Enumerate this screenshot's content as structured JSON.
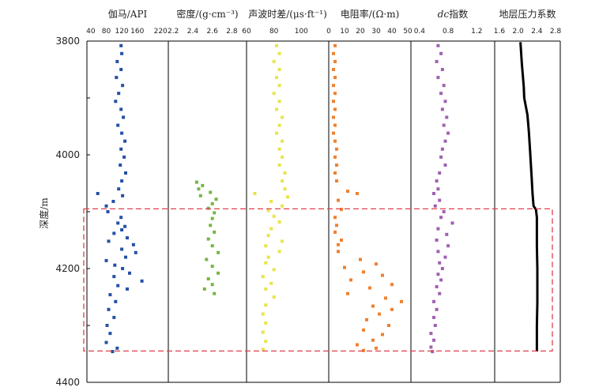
{
  "chart_data": {
    "type": "scatter",
    "title": "",
    "ylabel": "深度/m",
    "ylim": [
      3800,
      4400
    ],
    "yticks": [
      3800,
      4000,
      4200,
      4400
    ],
    "tracks": [
      {
        "name": "伽马/API",
        "xlim": [
          30,
          240
        ],
        "ticks": [
          40,
          80,
          120,
          160,
          220
        ],
        "tick_labels": [
          "40",
          "80",
          "120",
          "160",
          "220"
        ],
        "color": "#2450a4",
        "style": "points",
        "points": [
          [
            3808,
            118
          ],
          [
            3822,
            120
          ],
          [
            3836,
            108
          ],
          [
            3850,
            118
          ],
          [
            3864,
            106
          ],
          [
            3878,
            122
          ],
          [
            3892,
            112
          ],
          [
            3906,
            104
          ],
          [
            3920,
            118
          ],
          [
            3934,
            124
          ],
          [
            3948,
            110
          ],
          [
            3962,
            120
          ],
          [
            3976,
            128
          ],
          [
            3990,
            118
          ],
          [
            4004,
            126
          ],
          [
            4018,
            116
          ],
          [
            4032,
            130
          ],
          [
            4046,
            120
          ],
          [
            4060,
            112
          ],
          [
            4068,
            58
          ],
          [
            4072,
            122
          ],
          [
            4082,
            98
          ],
          [
            4090,
            80
          ],
          [
            4100,
            84
          ],
          [
            4110,
            118
          ],
          [
            4120,
            110
          ],
          [
            4126,
            128
          ],
          [
            4132,
            120
          ],
          [
            4138,
            100
          ],
          [
            4146,
            134
          ],
          [
            4152,
            86
          ],
          [
            4158,
            150
          ],
          [
            4166,
            120
          ],
          [
            4172,
            156
          ],
          [
            4180,
            130
          ],
          [
            4186,
            80
          ],
          [
            4194,
            102
          ],
          [
            4200,
            122
          ],
          [
            4208,
            140
          ],
          [
            4214,
            100
          ],
          [
            4222,
            172
          ],
          [
            4230,
            110
          ],
          [
            4236,
            134
          ],
          [
            4246,
            90
          ],
          [
            4258,
            104
          ],
          [
            4272,
            86
          ],
          [
            4286,
            100
          ],
          [
            4300,
            82
          ],
          [
            4314,
            90
          ],
          [
            4330,
            80
          ],
          [
            4340,
            108
          ],
          [
            4346,
            96
          ]
        ]
      },
      {
        "name": "密度/(g·cm⁻³)",
        "xlim": [
          2.15,
          2.95
        ],
        "ticks": [
          2.2,
          2.4,
          2.6,
          2.8
        ],
        "tick_labels": [
          "2.2",
          "2.4",
          "2.6",
          "2.8"
        ],
        "color": "#74b744",
        "style": "points",
        "points": [
          [
            4048,
            2.44
          ],
          [
            4054,
            2.5
          ],
          [
            4060,
            2.46
          ],
          [
            4066,
            2.58
          ],
          [
            4072,
            2.48
          ],
          [
            4078,
            2.64
          ],
          [
            4086,
            2.6
          ],
          [
            4094,
            2.56
          ],
          [
            4102,
            2.62
          ],
          [
            4112,
            2.6
          ],
          [
            4124,
            2.58
          ],
          [
            4136,
            2.62
          ],
          [
            4148,
            2.56
          ],
          [
            4160,
            2.6
          ],
          [
            4172,
            2.66
          ],
          [
            4184,
            2.54
          ],
          [
            4196,
            2.6
          ],
          [
            4208,
            2.66
          ],
          [
            4218,
            2.56
          ],
          [
            4228,
            2.6
          ],
          [
            4236,
            2.52
          ],
          [
            4244,
            2.62
          ]
        ]
      },
      {
        "name": "声波时差/(μs·ft⁻¹)",
        "xlim": [
          60,
          120
        ],
        "ticks": [
          60,
          80,
          100
        ],
        "tick_labels": [
          "60",
          "80",
          "100"
        ],
        "color": "#e8e44a",
        "style": "points",
        "points": [
          [
            3808,
            82
          ],
          [
            3822,
            84
          ],
          [
            3836,
            80
          ],
          [
            3850,
            84
          ],
          [
            3864,
            82
          ],
          [
            3878,
            84
          ],
          [
            3892,
            80
          ],
          [
            3906,
            84
          ],
          [
            3920,
            82
          ],
          [
            3934,
            86
          ],
          [
            3948,
            84
          ],
          [
            3962,
            82
          ],
          [
            3976,
            86
          ],
          [
            3990,
            84
          ],
          [
            4004,
            86
          ],
          [
            4018,
            84
          ],
          [
            4032,
            88
          ],
          [
            4046,
            86
          ],
          [
            4060,
            88
          ],
          [
            4068,
            66
          ],
          [
            4074,
            90
          ],
          [
            4082,
            78
          ],
          [
            4090,
            86
          ],
          [
            4098,
            76
          ],
          [
            4108,
            80
          ],
          [
            4118,
            84
          ],
          [
            4130,
            78
          ],
          [
            4142,
            76
          ],
          [
            4152,
            86
          ],
          [
            4160,
            74
          ],
          [
            4170,
            84
          ],
          [
            4180,
            76
          ],
          [
            4190,
            74
          ],
          [
            4202,
            80
          ],
          [
            4214,
            72
          ],
          [
            4226,
            78
          ],
          [
            4236,
            74
          ],
          [
            4250,
            80
          ],
          [
            4264,
            74
          ],
          [
            4280,
            72
          ],
          [
            4296,
            74
          ],
          [
            4312,
            72
          ],
          [
            4328,
            74
          ],
          [
            4342,
            72
          ]
        ]
      },
      {
        "name": "电阻率/(Ω·m)",
        "xlim": [
          0,
          52
        ],
        "ticks": [
          0,
          10,
          20,
          30,
          40,
          50
        ],
        "tick_labels": [
          "0",
          "10",
          "20",
          "30",
          "40",
          "50"
        ],
        "color": "#f08030",
        "style": "points",
        "points": [
          [
            3808,
            4
          ],
          [
            3822,
            3
          ],
          [
            3836,
            4
          ],
          [
            3850,
            3
          ],
          [
            3864,
            4
          ],
          [
            3878,
            3
          ],
          [
            3892,
            4
          ],
          [
            3906,
            3
          ],
          [
            3920,
            4
          ],
          [
            3934,
            3
          ],
          [
            3948,
            4
          ],
          [
            3962,
            3
          ],
          [
            3976,
            4
          ],
          [
            3990,
            5
          ],
          [
            4004,
            4
          ],
          [
            4018,
            5
          ],
          [
            4032,
            4
          ],
          [
            4046,
            5
          ],
          [
            4064,
            12
          ],
          [
            4068,
            18
          ],
          [
            4080,
            6
          ],
          [
            4096,
            8
          ],
          [
            4110,
            4
          ],
          [
            4124,
            5
          ],
          [
            4136,
            4
          ],
          [
            4150,
            8
          ],
          [
            4158,
            6
          ],
          [
            4170,
            6
          ],
          [
            4184,
            20
          ],
          [
            4192,
            30
          ],
          [
            4198,
            10
          ],
          [
            4206,
            22
          ],
          [
            4212,
            34
          ],
          [
            4220,
            14
          ],
          [
            4228,
            40
          ],
          [
            4234,
            26
          ],
          [
            4244,
            12
          ],
          [
            4252,
            36
          ],
          [
            4258,
            46
          ],
          [
            4266,
            28
          ],
          [
            4272,
            40
          ],
          [
            4280,
            32
          ],
          [
            4290,
            24
          ],
          [
            4300,
            38
          ],
          [
            4308,
            22
          ],
          [
            4316,
            34
          ],
          [
            4326,
            28
          ],
          [
            4334,
            18
          ],
          [
            4340,
            30
          ],
          [
            4344,
            22
          ]
        ]
      },
      {
        "name": "dc指数",
        "name_prefix": "dc",
        "name_suffix": "指数",
        "xlim": [
          0.28,
          1.45
        ],
        "ticks": [
          0.4,
          0.8,
          1.2
        ],
        "tick_labels": [
          "0.4",
          "0.8",
          "1.2"
        ],
        "color": "#a060b0",
        "style": "points",
        "points": [
          [
            3808,
            0.66
          ],
          [
            3822,
            0.7
          ],
          [
            3836,
            0.64
          ],
          [
            3850,
            0.72
          ],
          [
            3864,
            0.66
          ],
          [
            3878,
            0.74
          ],
          [
            3892,
            0.7
          ],
          [
            3906,
            0.76
          ],
          [
            3920,
            0.72
          ],
          [
            3934,
            0.78
          ],
          [
            3948,
            0.74
          ],
          [
            3962,
            0.8
          ],
          [
            3976,
            0.76
          ],
          [
            3990,
            0.72
          ],
          [
            4004,
            0.7
          ],
          [
            4018,
            0.76
          ],
          [
            4032,
            0.68
          ],
          [
            4046,
            0.64
          ],
          [
            4060,
            0.66
          ],
          [
            4068,
            0.6
          ],
          [
            4080,
            0.68
          ],
          [
            4090,
            0.62
          ],
          [
            4100,
            0.74
          ],
          [
            4110,
            0.7
          ],
          [
            4120,
            0.86
          ],
          [
            4130,
            0.66
          ],
          [
            4140,
            0.78
          ],
          [
            4150,
            0.64
          ],
          [
            4160,
            0.8
          ],
          [
            4170,
            0.66
          ],
          [
            4180,
            0.76
          ],
          [
            4190,
            0.68
          ],
          [
            4200,
            0.72
          ],
          [
            4210,
            0.66
          ],
          [
            4220,
            0.7
          ],
          [
            4232,
            0.64
          ],
          [
            4244,
            0.68
          ],
          [
            4258,
            0.6
          ],
          [
            4272,
            0.64
          ],
          [
            4286,
            0.6
          ],
          [
            4300,
            0.62
          ],
          [
            4314,
            0.56
          ],
          [
            4326,
            0.6
          ],
          [
            4338,
            0.56
          ],
          [
            4346,
            0.58
          ]
        ]
      },
      {
        "name": "地层压力系数",
        "xlim": [
          1.5,
          2.9
        ],
        "ticks": [
          1.6,
          2.0,
          2.4,
          2.8
        ],
        "tick_labels": [
          "1.6",
          "2.0",
          "2.4",
          "2.8"
        ],
        "color": "#000000",
        "style": "line",
        "points": [
          [
            3802,
            2.05
          ],
          [
            3840,
            2.08
          ],
          [
            3880,
            2.12
          ],
          [
            3900,
            2.13
          ],
          [
            3930,
            2.2
          ],
          [
            3960,
            2.23
          ],
          [
            4000,
            2.26
          ],
          [
            4040,
            2.29
          ],
          [
            4070,
            2.31
          ],
          [
            4090,
            2.33
          ],
          [
            4096,
            2.38
          ],
          [
            4110,
            2.4
          ],
          [
            4160,
            2.4
          ],
          [
            4200,
            2.41
          ],
          [
            4260,
            2.41
          ],
          [
            4300,
            2.4
          ],
          [
            4346,
            2.4
          ]
        ]
      }
    ],
    "highlight_box": {
      "depth_top": 4095,
      "depth_bottom": 4345,
      "style": "red dashed"
    }
  }
}
